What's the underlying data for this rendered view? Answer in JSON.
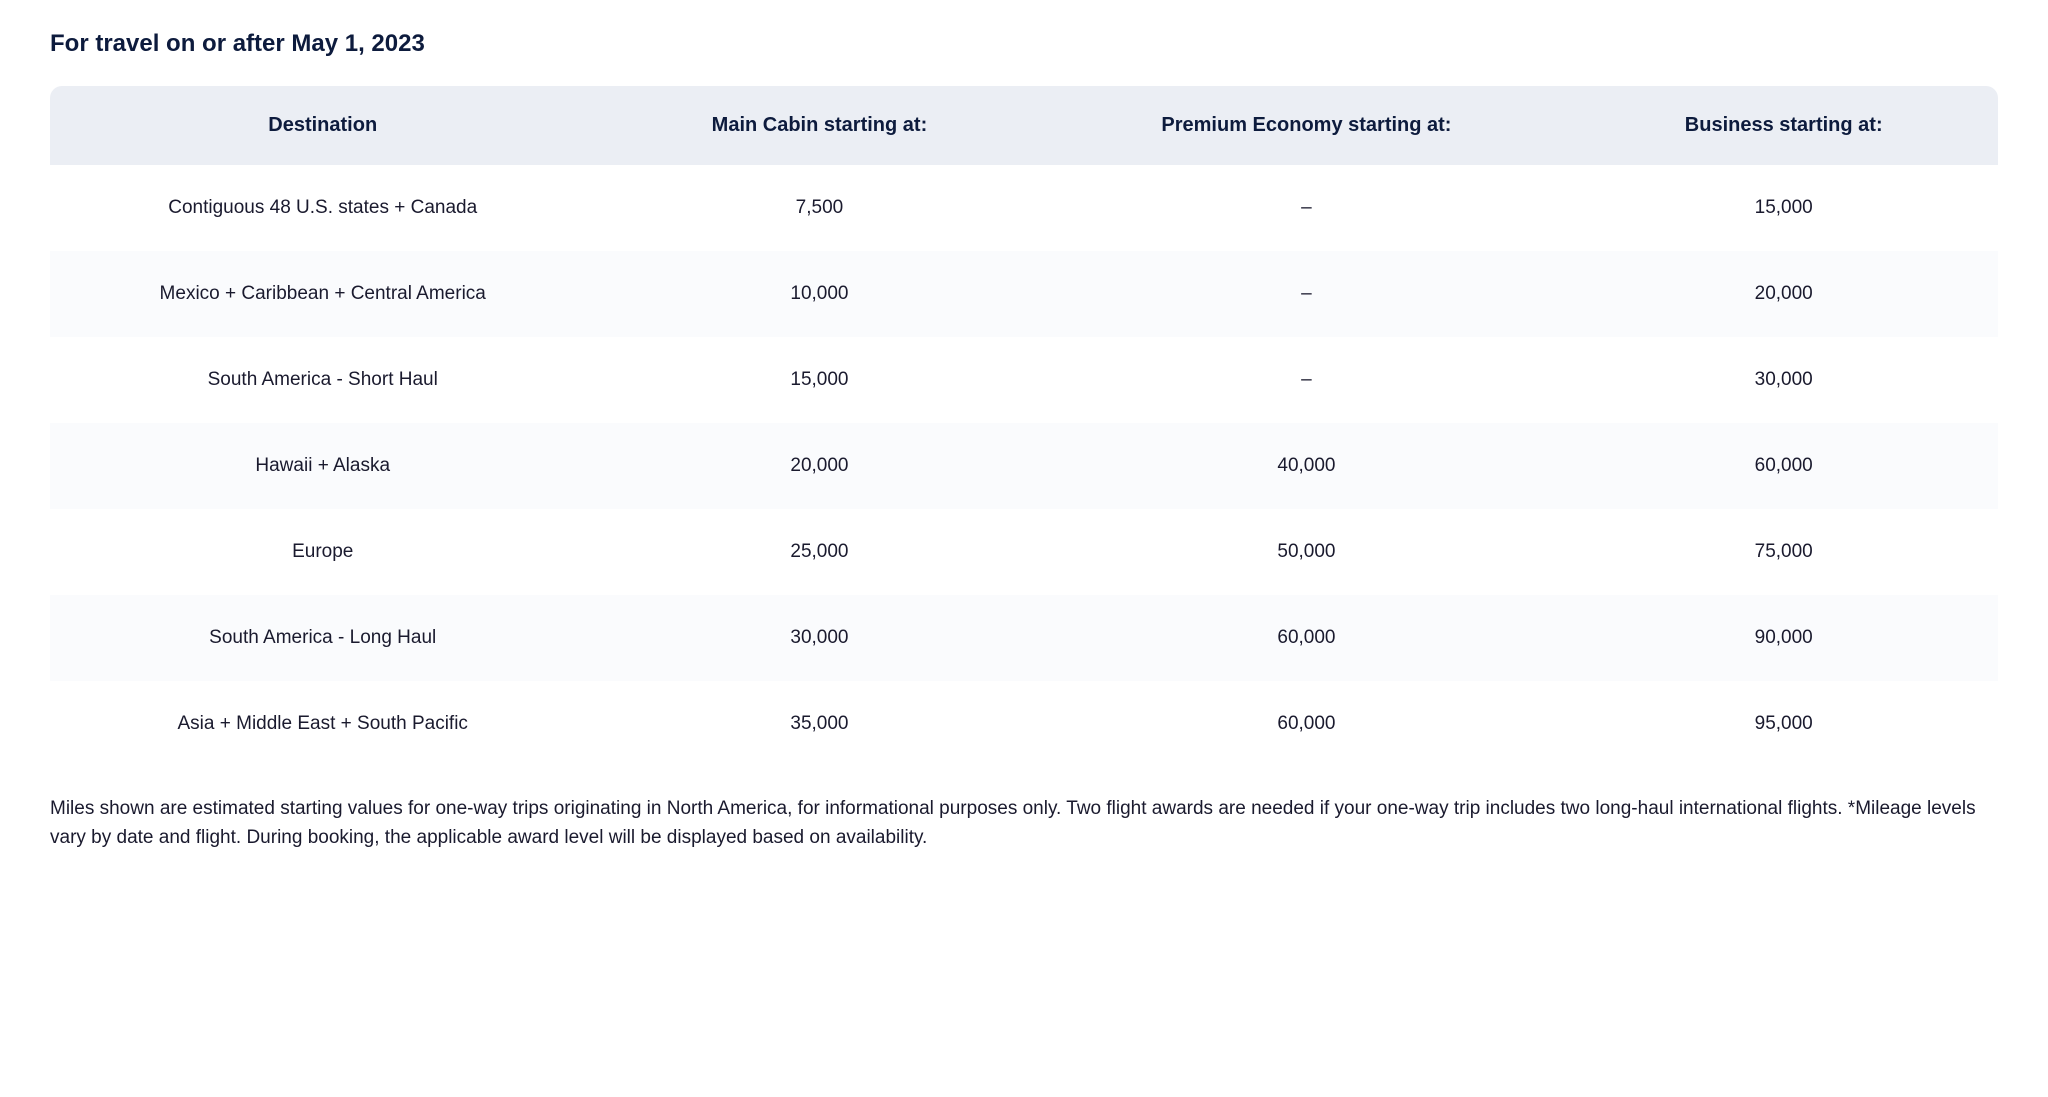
{
  "heading": "For travel on or after May 1, 2023",
  "table": {
    "columns": [
      "Destination",
      "Main Cabin starting at:",
      "Premium Economy starting at:",
      "Business starting at:"
    ],
    "rows": [
      [
        "Contiguous 48 U.S. states + Canada",
        "7,500",
        "–",
        "15,000"
      ],
      [
        "Mexico + Caribbean + Central America",
        "10,000",
        "–",
        "20,000"
      ],
      [
        "South America - Short Haul",
        "15,000",
        "–",
        "30,000"
      ],
      [
        "Hawaii + Alaska",
        "20,000",
        "40,000",
        "60,000"
      ],
      [
        "Europe",
        "25,000",
        "50,000",
        "75,000"
      ],
      [
        "South America - Long Haul",
        "30,000",
        "60,000",
        "90,000"
      ],
      [
        "Asia + Middle East + South Pacific",
        "35,000",
        "60,000",
        "95,000"
      ]
    ],
    "header_bg_color": "#ebeef4",
    "row_odd_bg_color": "#ffffff",
    "row_even_bg_color": "#fafbfd",
    "text_color": "#1a1a2e",
    "header_text_color": "#0d1b3d",
    "header_fontsize": 20,
    "cell_fontsize": 19,
    "border_radius": 12
  },
  "footnote": "Miles shown are estimated starting values for one-way trips originating in North America, for informational purposes only. Two flight awards are needed if your one-way trip includes two long-haul international flights. *Mileage levels vary by date and flight. During booking, the applicable award level will be displayed based on availability."
}
